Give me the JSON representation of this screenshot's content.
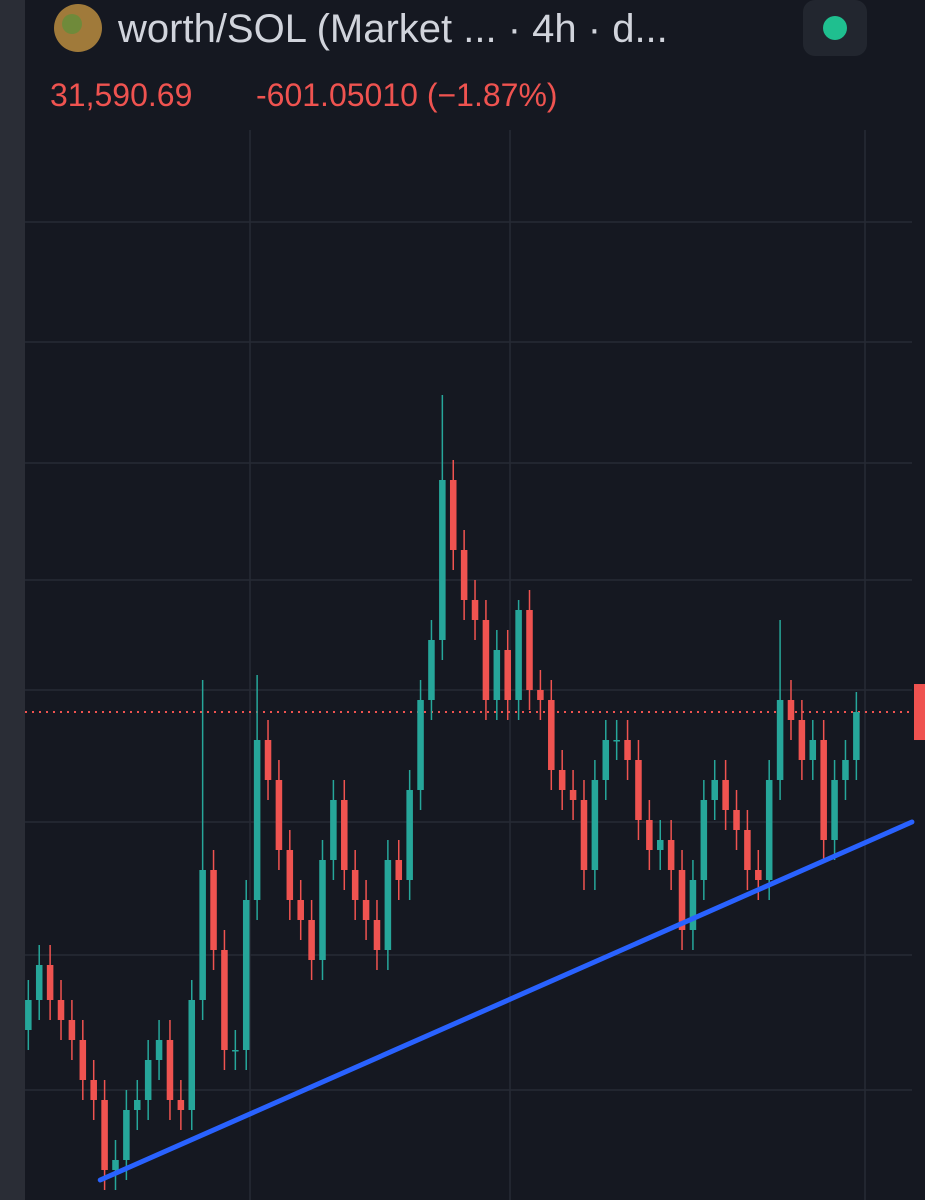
{
  "header": {
    "title": "worth/SOL (Market ... · 4h · d...",
    "price": "31,590.69",
    "change": "-601.05010 (−1.87%)"
  },
  "chart_data": {
    "type": "candlestick",
    "up_color": "#26a69a",
    "down_color": "#ef5350",
    "xlim": [
      -2.6,
      82.3
    ],
    "ylim": [
      19391,
      45891
    ],
    "last_price": 31590.69,
    "last_price_color": "#ef5350",
    "trendline": {
      "color": "#2962ff",
      "x": [
        6.6,
        81.1
      ],
      "values": [
        19891,
        28841
      ]
    },
    "candles": [
      [
        23641,
        24891,
        23141,
        24391
      ],
      [
        24391,
        25766,
        23891,
        25266
      ],
      [
        25266,
        25766,
        23891,
        24391
      ],
      [
        24391,
        24891,
        23391,
        23891
      ],
      [
        23891,
        24391,
        22891,
        23391
      ],
      [
        23391,
        23891,
        21891,
        22391
      ],
      [
        22391,
        22891,
        21391,
        21891
      ],
      [
        21891,
        22391,
        19641,
        20141
      ],
      [
        20141,
        20891,
        19641,
        20391
      ],
      [
        20391,
        22141,
        19891,
        21641
      ],
      [
        21641,
        22391,
        21141,
        21891
      ],
      [
        21891,
        23391,
        21391,
        22891
      ],
      [
        22891,
        23891,
        22391,
        23391
      ],
      [
        23391,
        23891,
        21391,
        21891
      ],
      [
        21891,
        22391,
        21141,
        21641
      ],
      [
        21641,
        24891,
        21141,
        24391
      ],
      [
        24391,
        32391,
        23891,
        27641
      ],
      [
        27641,
        28141,
        25141,
        25641
      ],
      [
        25641,
        26141,
        22641,
        23141
      ],
      [
        23141,
        23641,
        22641,
        23141
      ],
      [
        23141,
        27391,
        22641,
        26891
      ],
      [
        26891,
        32516,
        26391,
        30891
      ],
      [
        30891,
        31391,
        29391,
        29891
      ],
      [
        29891,
        30391,
        27641,
        28141
      ],
      [
        28141,
        28641,
        26391,
        26891
      ],
      [
        26891,
        27391,
        25891,
        26391
      ],
      [
        26391,
        26891,
        24891,
        25391
      ],
      [
        25391,
        28391,
        24891,
        27891
      ],
      [
        27891,
        29891,
        27391,
        29391
      ],
      [
        29391,
        29891,
        27141,
        27641
      ],
      [
        27641,
        28141,
        26391,
        26891
      ],
      [
        26891,
        27391,
        25891,
        26391
      ],
      [
        26391,
        26891,
        25141,
        25641
      ],
      [
        25641,
        28391,
        25141,
        27891
      ],
      [
        27891,
        28391,
        26891,
        27391
      ],
      [
        27391,
        30141,
        26891,
        29641
      ],
      [
        29641,
        32391,
        29141,
        31891
      ],
      [
        31891,
        33891,
        31391,
        33391
      ],
      [
        33391,
        39516,
        32891,
        37391
      ],
      [
        37391,
        37891,
        35141,
        35641
      ],
      [
        35641,
        36141,
        33891,
        34391
      ],
      [
        34391,
        34891,
        33391,
        33891
      ],
      [
        33891,
        34391,
        31391,
        31891
      ],
      [
        31891,
        33641,
        31391,
        33141
      ],
      [
        33141,
        33641,
        31391,
        31891
      ],
      [
        31891,
        34391,
        31391,
        34141
      ],
      [
        34141,
        34641,
        31641,
        32141
      ],
      [
        32141,
        32641,
        31391,
        31891
      ],
      [
        31891,
        32391,
        29641,
        30141
      ],
      [
        30141,
        30641,
        29141,
        29641
      ],
      [
        29641,
        30141,
        28891,
        29391
      ],
      [
        29391,
        29891,
        27141,
        27641
      ],
      [
        27641,
        30391,
        27141,
        29891
      ],
      [
        29891,
        31391,
        29391,
        30891
      ],
      [
        30891,
        31391,
        30391,
        30891
      ],
      [
        30891,
        31391,
        29891,
        30391
      ],
      [
        30391,
        30891,
        28391,
        28891
      ],
      [
        28891,
        29391,
        27641,
        28141
      ],
      [
        28141,
        28891,
        27641,
        28391
      ],
      [
        28391,
        28891,
        27141,
        27641
      ],
      [
        27641,
        28141,
        25641,
        26141
      ],
      [
        26141,
        27891,
        25641,
        27391
      ],
      [
        27391,
        29891,
        26891,
        29391
      ],
      [
        29391,
        30391,
        28891,
        29891
      ],
      [
        29891,
        30391,
        28641,
        29141
      ],
      [
        29141,
        29641,
        28141,
        28641
      ],
      [
        28641,
        29141,
        27141,
        27641
      ],
      [
        27641,
        28141,
        26891,
        27391
      ],
      [
        27391,
        30391,
        26891,
        29891
      ],
      [
        29891,
        33891,
        29391,
        31891
      ],
      [
        31891,
        32391,
        30891,
        31391
      ],
      [
        31391,
        31891,
        29891,
        30391
      ],
      [
        30391,
        31391,
        29891,
        30891
      ],
      [
        30891,
        31391,
        27891,
        28391
      ],
      [
        28391,
        30391,
        27891,
        29891
      ],
      [
        29891,
        30891,
        29391,
        30391
      ],
      [
        30391,
        32091,
        29891,
        31591
      ]
    ]
  }
}
